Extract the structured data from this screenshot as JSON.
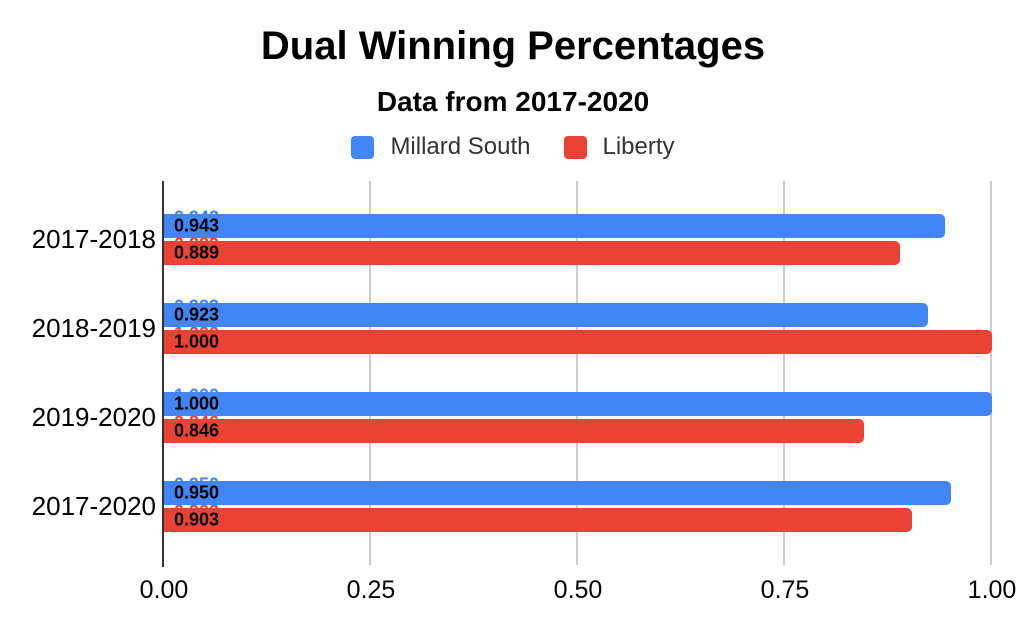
{
  "title": "Dual Winning Percentages",
  "subtitle": "Data from 2017-2020",
  "legend": [
    {
      "label": "Millard South",
      "color": "#4285f4"
    },
    {
      "label": "Liberty",
      "color": "#ea4335"
    }
  ],
  "colors": {
    "millard_south": "#4285f4",
    "liberty": "#ea4335",
    "axis_line": "#333333",
    "gridline": "#cccccc",
    "text": "#000000"
  },
  "chart_data": {
    "type": "bar",
    "orientation": "horizontal",
    "title": "Dual Winning Percentages",
    "subtitle": "Data from 2017-2020",
    "categories": [
      "2017-2018",
      "2018-2019",
      "2019-2020",
      "2017-2020"
    ],
    "series": [
      {
        "name": "Millard South",
        "color": "#4285f4",
        "values": [
          0.943,
          0.923,
          1.0,
          0.95
        ]
      },
      {
        "name": "Liberty",
        "color": "#ea4335",
        "values": [
          0.889,
          1.0,
          0.846,
          0.903
        ]
      }
    ],
    "xlabel": "",
    "ylabel": "",
    "xlim": [
      0,
      1
    ],
    "xticks": [
      0.0,
      0.25,
      0.5,
      0.75,
      1.0
    ],
    "xtick_labels": [
      "0.00",
      "0.25",
      "0.50",
      "0.75",
      "1.00"
    ],
    "grid": true,
    "legend_position": "top",
    "value_labels": "inside-base, 3 decimals, bold black"
  }
}
